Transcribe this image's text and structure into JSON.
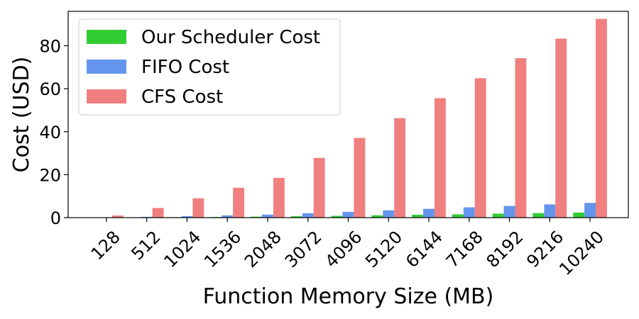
{
  "chart_data": {
    "type": "bar",
    "title": "",
    "xlabel": "Function Memory Size (MB)",
    "ylabel": "Cost (USD)",
    "categories": [
      "128",
      "512",
      "1024",
      "1536",
      "2048",
      "3072",
      "4096",
      "5120",
      "6144",
      "7168",
      "8192",
      "9216",
      "10240"
    ],
    "ylim": [
      0,
      96
    ],
    "yticks": [
      0,
      20,
      40,
      60,
      80
    ],
    "grid": false,
    "legend_position": "top-left",
    "series": [
      {
        "name": "Our Scheduler Cost",
        "color": "#32cd32",
        "values": [
          0.03,
          0.1,
          0.2,
          0.3,
          0.45,
          0.65,
          0.85,
          1.1,
          1.35,
          1.55,
          1.85,
          2.1,
          2.35
        ]
      },
      {
        "name": "FIFO Cost",
        "color": "#6495ed",
        "values": [
          0.1,
          0.35,
          0.7,
          1.05,
          1.4,
          2.05,
          2.7,
          3.4,
          4.1,
          4.8,
          5.45,
          6.15,
          6.85
        ]
      },
      {
        "name": "CFS Cost",
        "color": "#f08080",
        "values": [
          1.0,
          4.5,
          9.0,
          13.9,
          18.5,
          27.8,
          37.1,
          46.3,
          55.6,
          64.9,
          74.2,
          83.3,
          92.5
        ]
      }
    ]
  }
}
